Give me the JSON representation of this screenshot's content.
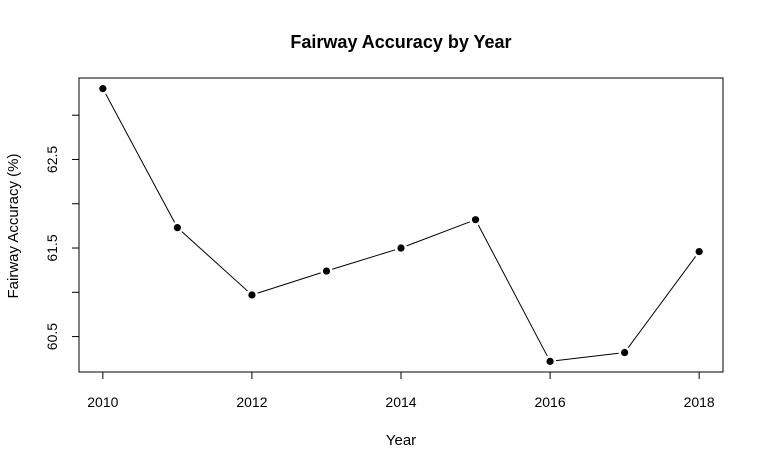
{
  "chart_data": {
    "type": "line",
    "title": "Fairway Accuracy by Year",
    "xlabel": "Year",
    "ylabel": "Fairway Accuracy (%)",
    "x": [
      2010,
      2011,
      2012,
      2013,
      2014,
      2015,
      2016,
      2017,
      2018
    ],
    "series": [
      {
        "values": [
          63.3,
          61.73,
          60.97,
          61.24,
          61.5,
          61.82,
          60.22,
          60.32,
          61.46
        ]
      }
    ],
    "xticks": [
      "2010",
      "2012",
      "2014",
      "2016",
      "2018"
    ],
    "xtick_values": [
      2010,
      2012,
      2014,
      2016,
      2018
    ],
    "yticks": [
      "60.5",
      "61.5",
      "62.5"
    ],
    "ytick_values": [
      60.5,
      61.5,
      62.5
    ],
    "yminor_ticks": [
      61.0,
      62.0,
      63.0
    ],
    "xlim": [
      2009.68,
      2018.32
    ],
    "ylim": [
      60.1,
      63.42
    ],
    "grid": false,
    "legend": "none",
    "line_color": "#000000",
    "marker_color": "#000000"
  }
}
